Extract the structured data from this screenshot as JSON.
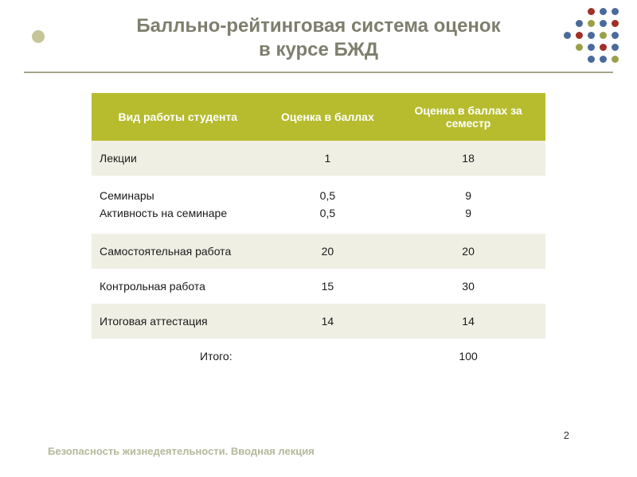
{
  "title_line1": "Балльно-рейтинговая система оценок",
  "title_line2": "в курсе БЖД",
  "footer": "Безопасность жизнедеятельности. Вводная лекция",
  "page_number": "2",
  "table": {
    "header_bg": "#b6bc2e",
    "header_fg": "#ffffff",
    "row_odd_bg": "#f0efe4",
    "row_even_bg": "#ffffff",
    "columns": [
      "Вид работы студента",
      "Оценка в баллах",
      "Оценка в баллах за семестр"
    ],
    "rows": [
      {
        "label": "Лекции",
        "score": "1",
        "semester": "18"
      },
      {
        "label": "Семинары\nАктивность на семинаре",
        "score": "0,5\n0,5",
        "semester": "9\n9"
      },
      {
        "label": "Самостоятельная работа",
        "score": "20",
        "semester": "20"
      },
      {
        "label": "Контрольная работа",
        "score": "15",
        "semester": "30"
      },
      {
        "label": "Итоговая аттестация",
        "score": "14",
        "semester": "14"
      }
    ],
    "total_label": "Итого:",
    "total_value": "100"
  },
  "decor_colors": [
    null,
    null,
    "#a03028",
    "#4a6a9c",
    "#4a6a9c",
    null,
    "#4a6a9c",
    "#9aa048",
    "#4a6a9c",
    "#a03028",
    "#4a6a9c",
    "#a03028",
    "#4a6a9c",
    "#9aa048",
    "#4a6a9c",
    null,
    "#9aa048",
    "#4a6a9c",
    "#a03028",
    "#4a6a9c",
    null,
    null,
    "#4a6a9c",
    "#4a6a9c",
    "#9aa048"
  ],
  "title_color": "#7e7e6e",
  "underline_color": "#a6a68a",
  "footer_color": "#b5b89a"
}
